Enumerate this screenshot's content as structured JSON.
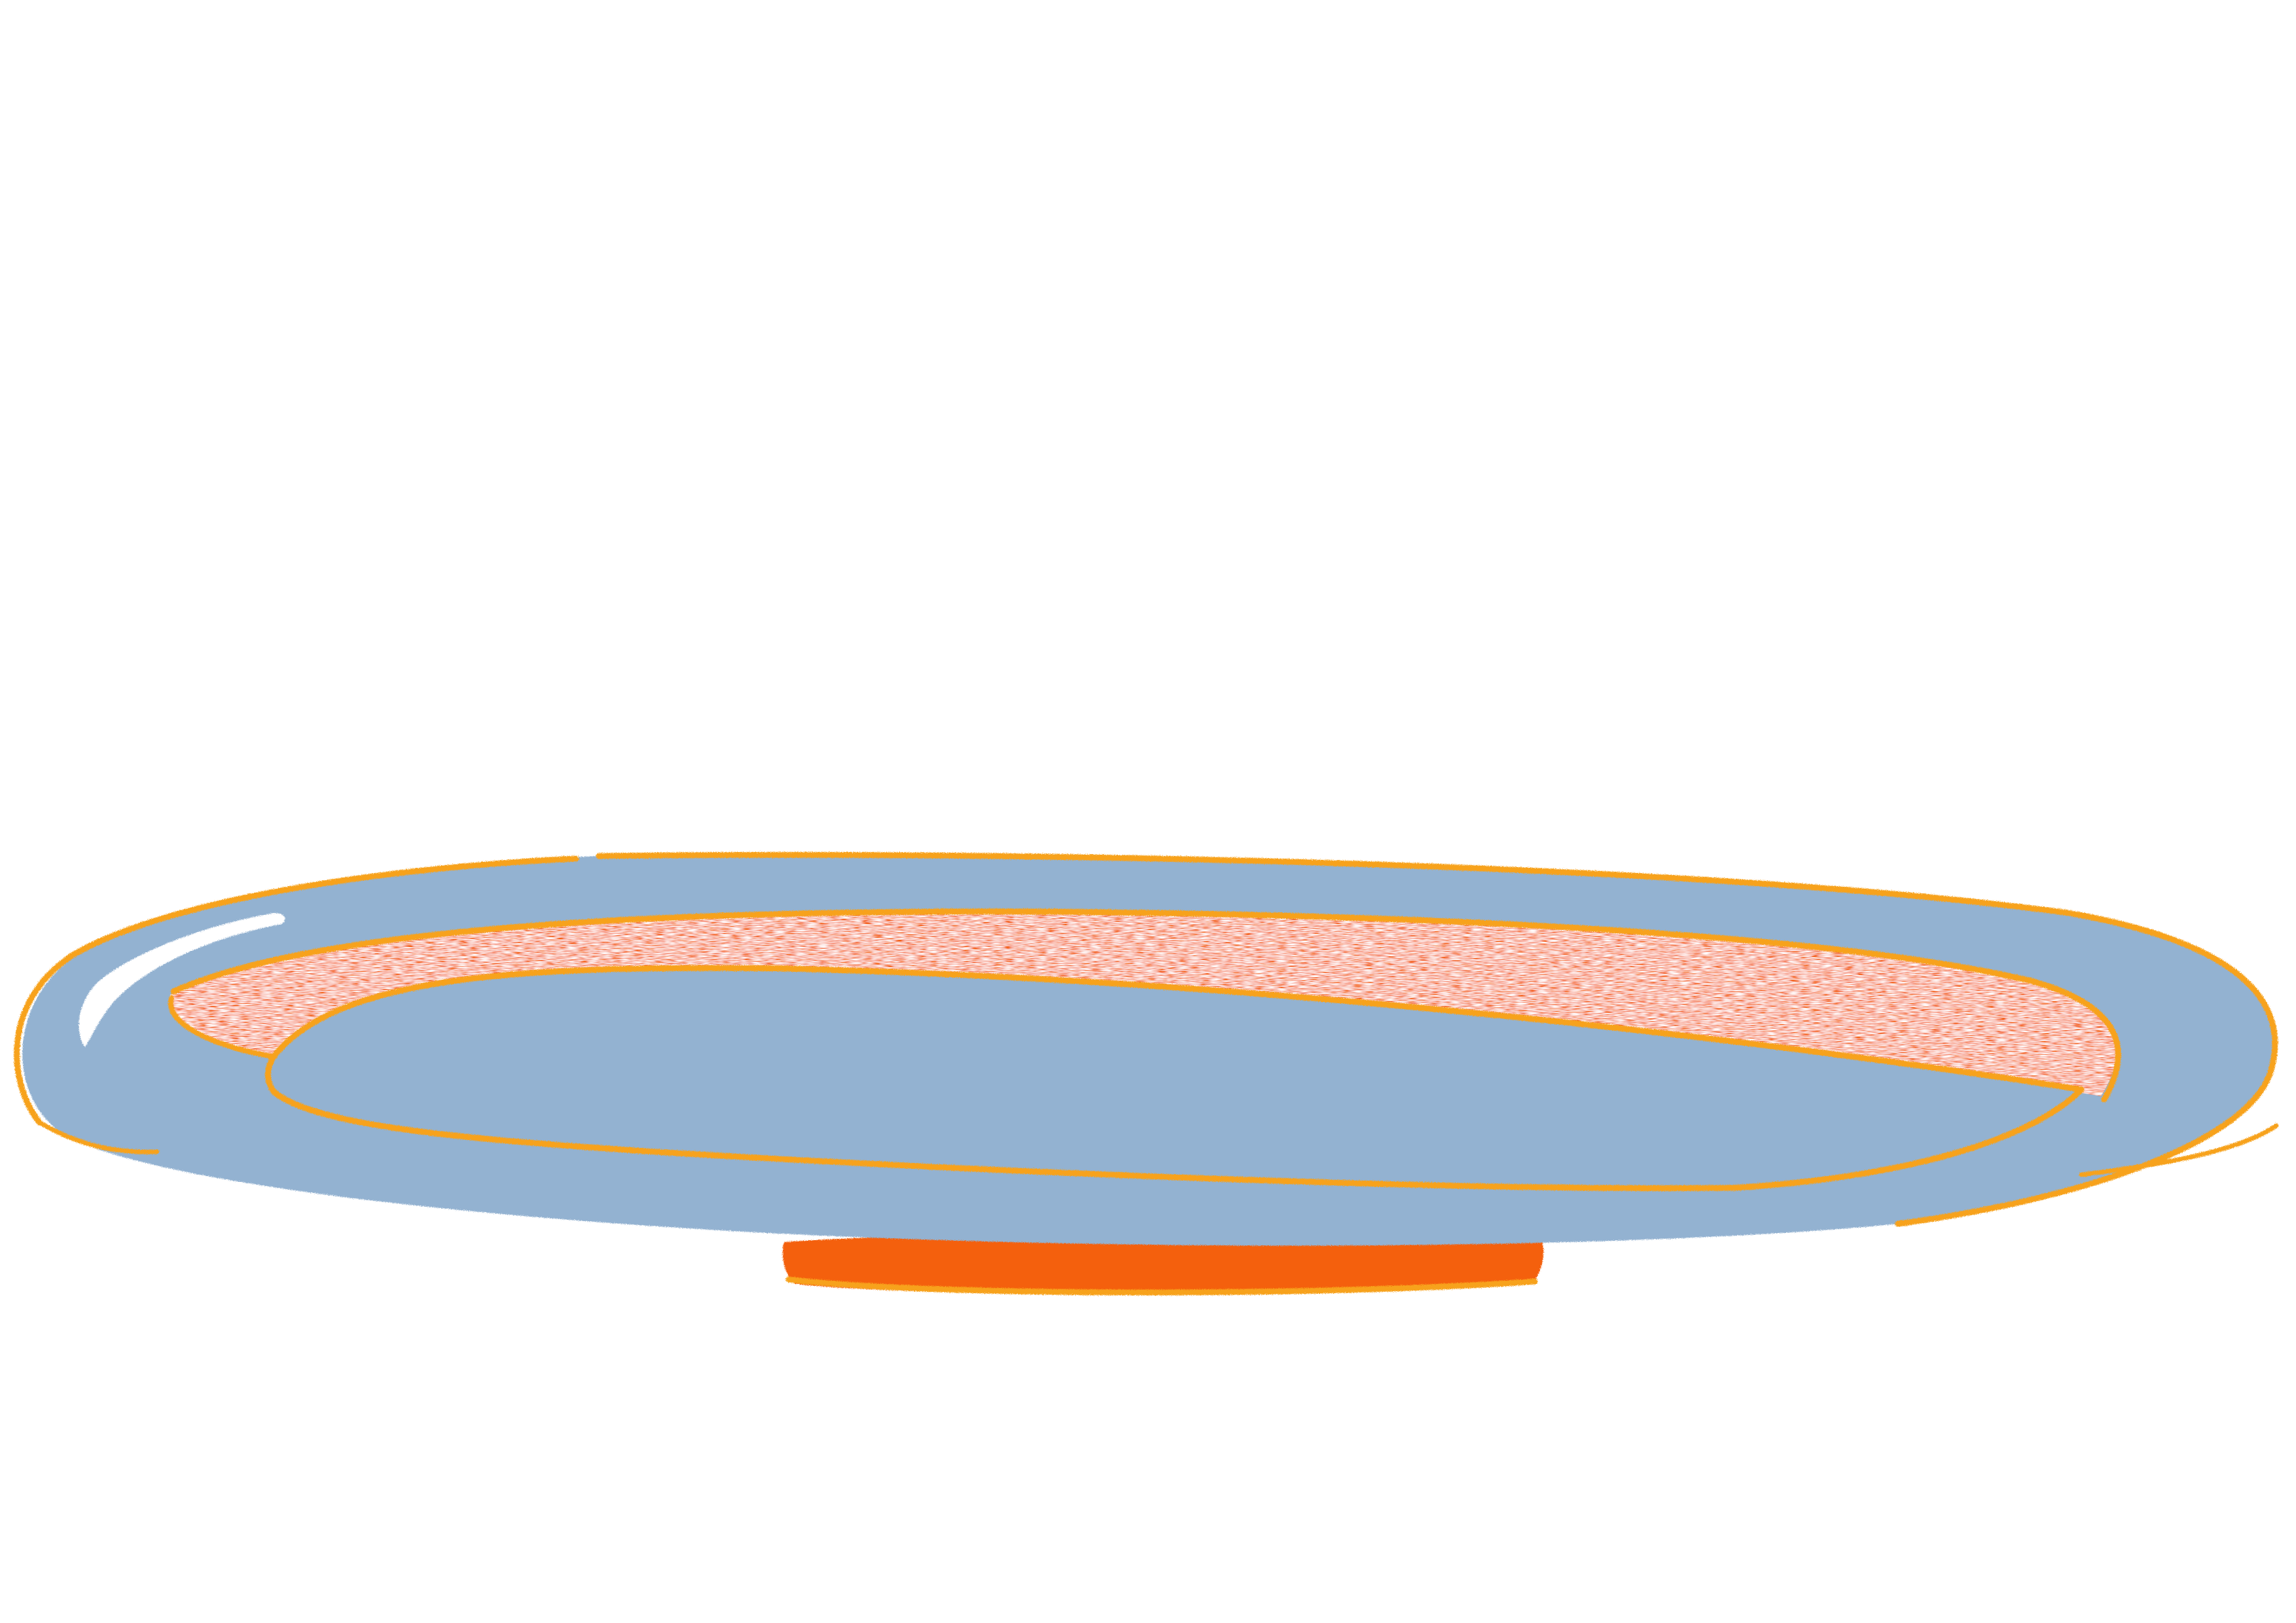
{
  "artwork": {
    "subject": "plate-drawing",
    "colors": {
      "background": "#ffffff",
      "plate": "#93b2d1",
      "outline": "#f7a21b",
      "rim_shadow": "#f4600c",
      "highlight": "#ffffff"
    }
  }
}
